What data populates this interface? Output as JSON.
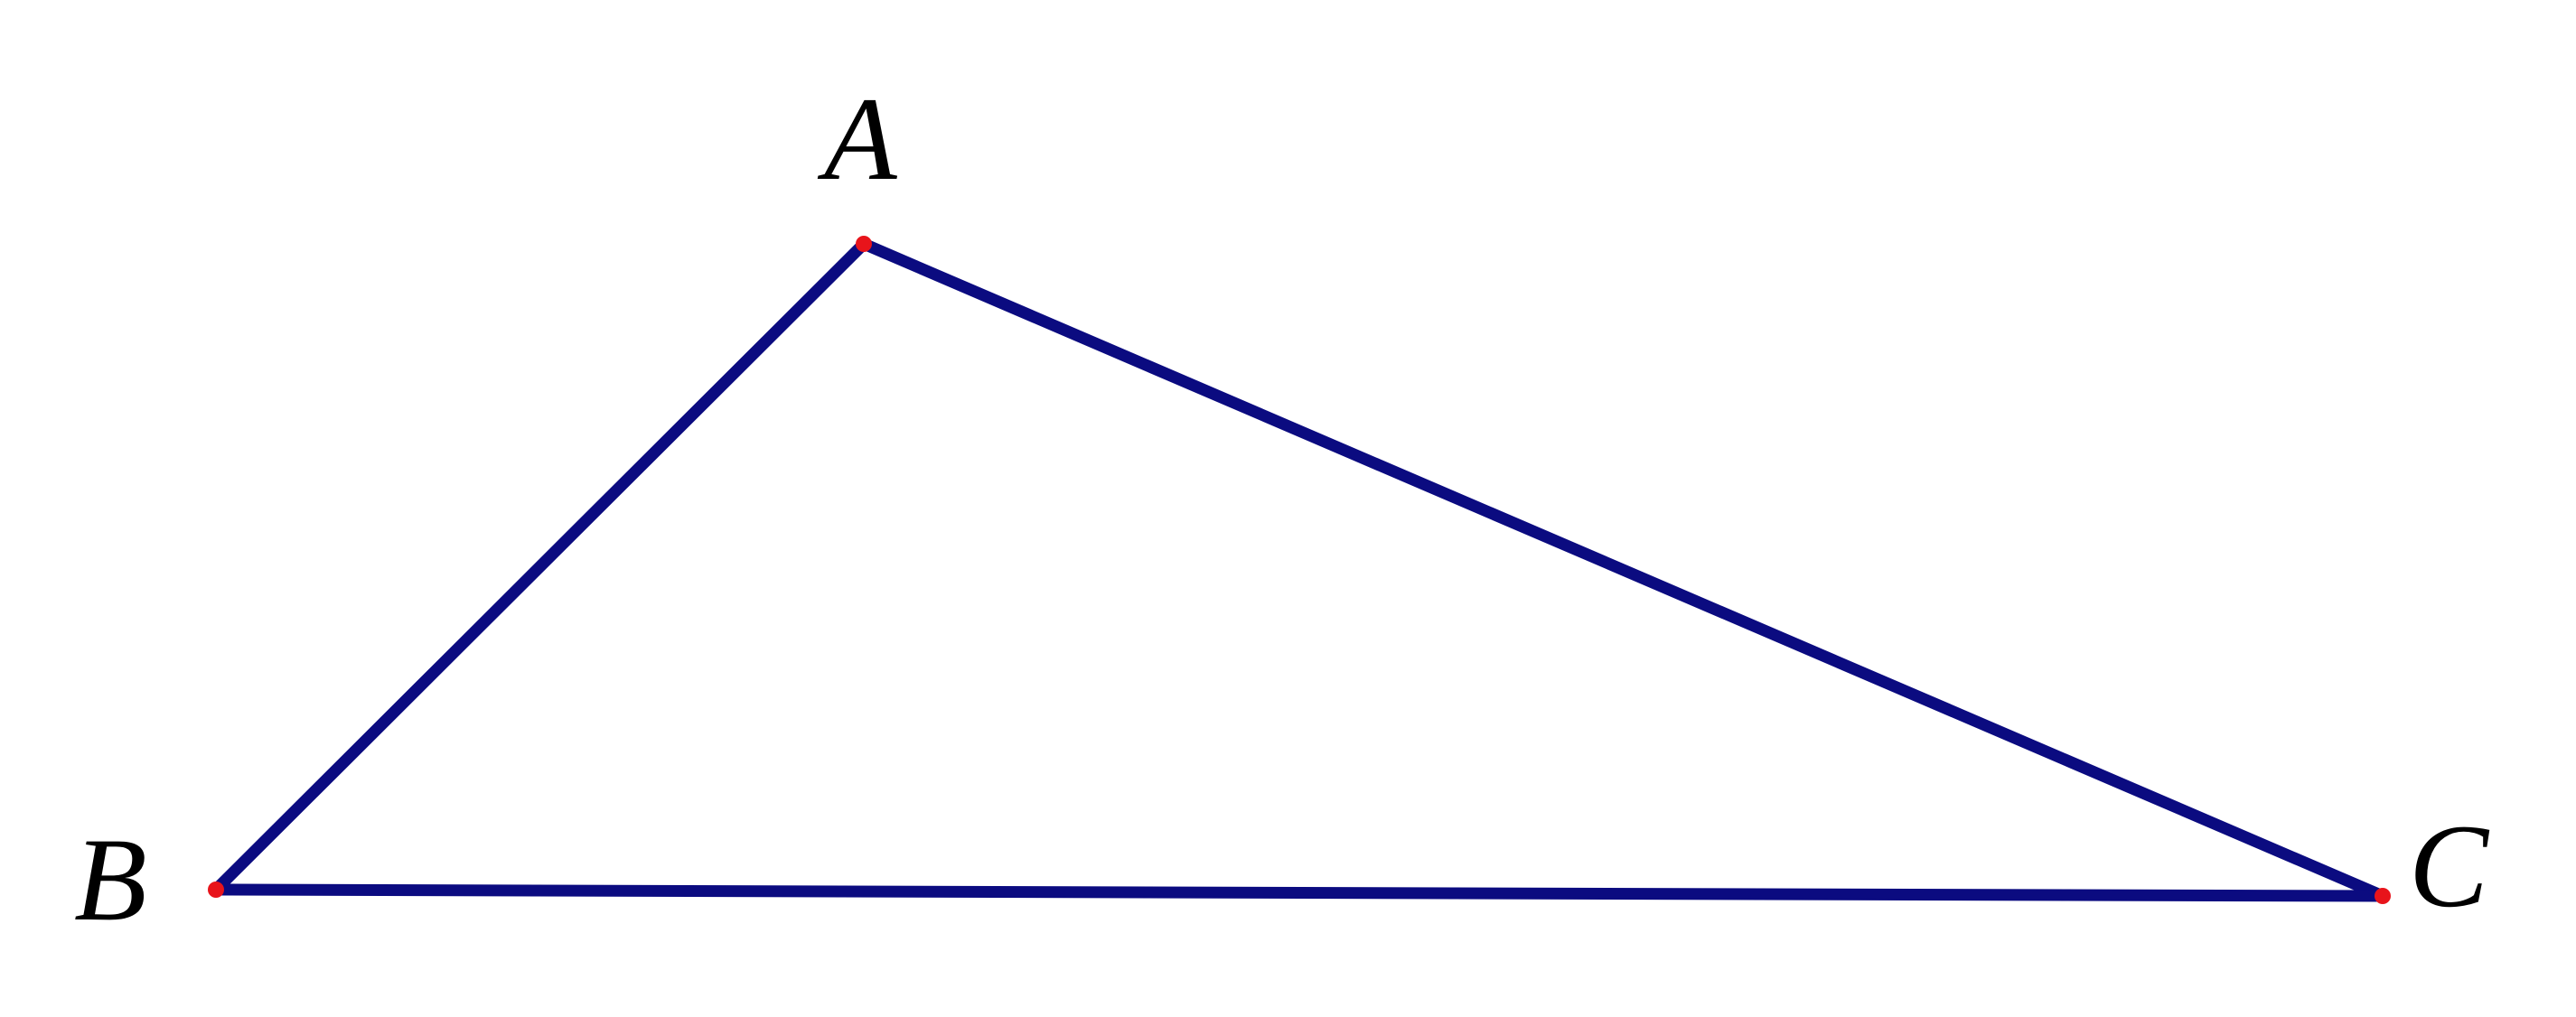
{
  "points": [
    {
      "label": "A"
    },
    {
      "label": "B"
    },
    {
      "label": "C"
    }
  ]
}
